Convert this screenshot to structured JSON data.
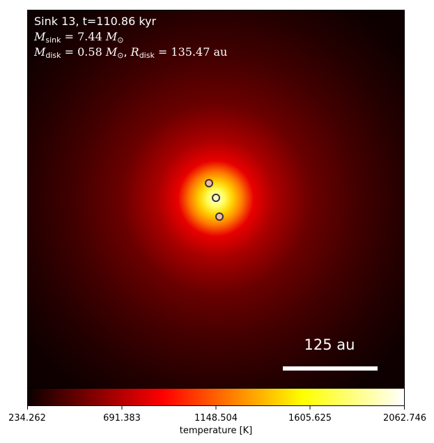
{
  "header": {
    "line1": "Sink 13, t=110.86 kyr",
    "msink_symbol": "M",
    "msink_sub": "sink",
    "msink_value": "= 7.44",
    "sun_symbol": "M",
    "sun_sub": "⊙",
    "mdisk_symbol": "M",
    "mdisk_sub": "disk",
    "mdisk_value": "= 0.58",
    "rdisk_symbol": "R",
    "rdisk_sub": "disk",
    "rdisk_value": "= 135.47 au"
  },
  "scale_bar": {
    "label": "125 au"
  },
  "colorbar": {
    "label": "temperature [K]",
    "ticks": [
      "234.262",
      "691.383",
      "1148.504",
      "1605.625",
      "2062.746"
    ],
    "colormap": "hot"
  },
  "sinks": [
    {
      "name": "sink-a",
      "fill": "#f3b9a6"
    },
    {
      "name": "sink-b",
      "fill": "#fff3c8"
    },
    {
      "name": "sink-c",
      "fill": "#f3b9a6"
    }
  ],
  "colors": {
    "marker_edge": "#333333",
    "scale_bar": "#ffffff",
    "text": "#ffffff"
  }
}
